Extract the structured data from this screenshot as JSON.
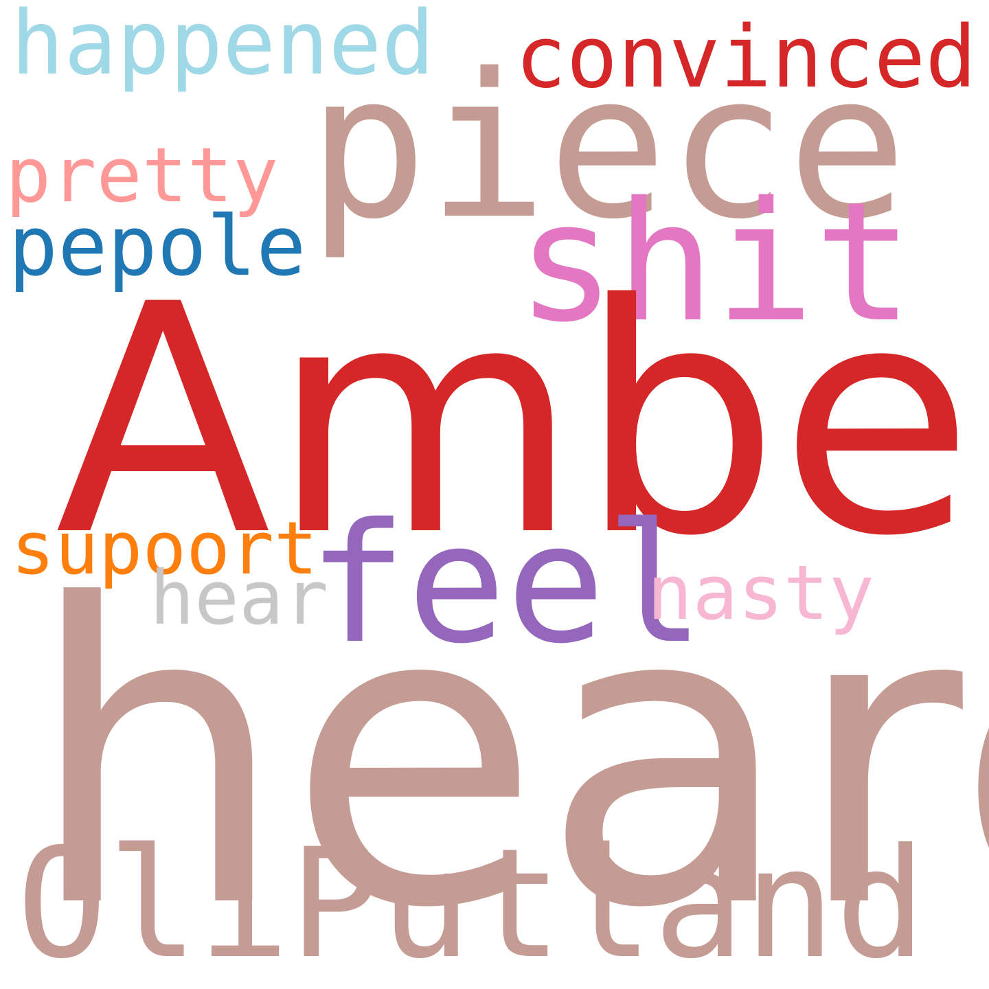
{
  "words": [
    {
      "id": "happened",
      "text": "happened",
      "color": "#9fd8e6"
    },
    {
      "id": "convinced",
      "text": "convinced",
      "color": "#d62728"
    },
    {
      "id": "piece",
      "text": "piece",
      "color": "#c49c94"
    },
    {
      "id": "pretty",
      "text": "pretty",
      "color": "#ff9896"
    },
    {
      "id": "pepole",
      "text": "pepole",
      "color": "#1f77b4"
    },
    {
      "id": "shit",
      "text": "shit",
      "color": "#e377c2"
    },
    {
      "id": "amber",
      "text": "Amber",
      "color": "#d62728"
    },
    {
      "id": "supoort",
      "text": "supoort",
      "color": "#ff7f0e"
    },
    {
      "id": "feel",
      "text": "feel",
      "color": "#9467bd"
    },
    {
      "id": "hear",
      "text": "hear",
      "color": "#c7c7c7"
    },
    {
      "id": "nasty",
      "text": "nasty",
      "color": "#f7b6d2"
    },
    {
      "id": "heard",
      "text": "heard",
      "color": "#c49c94"
    },
    {
      "id": "oliputland",
      "text": "OliPutland",
      "color": "#c49c94"
    }
  ]
}
